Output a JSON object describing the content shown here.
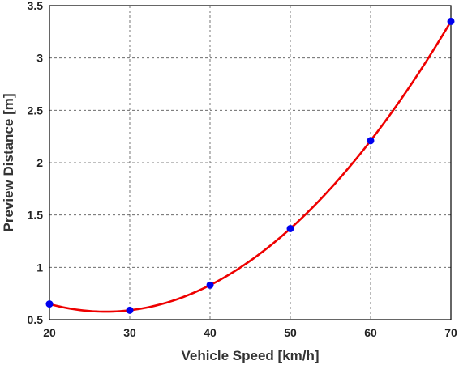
{
  "chart_data": {
    "type": "line",
    "title": "",
    "xlabel": "Vehicle Speed [km/h]",
    "ylabel": "Preview Distance [m]",
    "xlim": [
      20,
      70
    ],
    "ylim": [
      0.5,
      3.5
    ],
    "xticks": [
      20,
      30,
      40,
      50,
      60,
      70
    ],
    "yticks": [
      0.5,
      1,
      1.5,
      2,
      2.5,
      3,
      3.5
    ],
    "xtick_labels": [
      "20",
      "30",
      "40",
      "50",
      "60",
      "70"
    ],
    "ytick_labels": [
      "0.5",
      "1",
      "1.5",
      "2",
      "2.5",
      "3",
      "3.5"
    ],
    "grid": true,
    "series": [
      {
        "type": "scatter",
        "color": "#0000ee",
        "x": [
          20,
          30,
          40,
          50,
          60,
          70
        ],
        "y": [
          0.65,
          0.59,
          0.83,
          1.37,
          2.21,
          3.35
        ]
      },
      {
        "type": "line",
        "color": "#ee0000",
        "fit": "quadratic"
      }
    ]
  }
}
